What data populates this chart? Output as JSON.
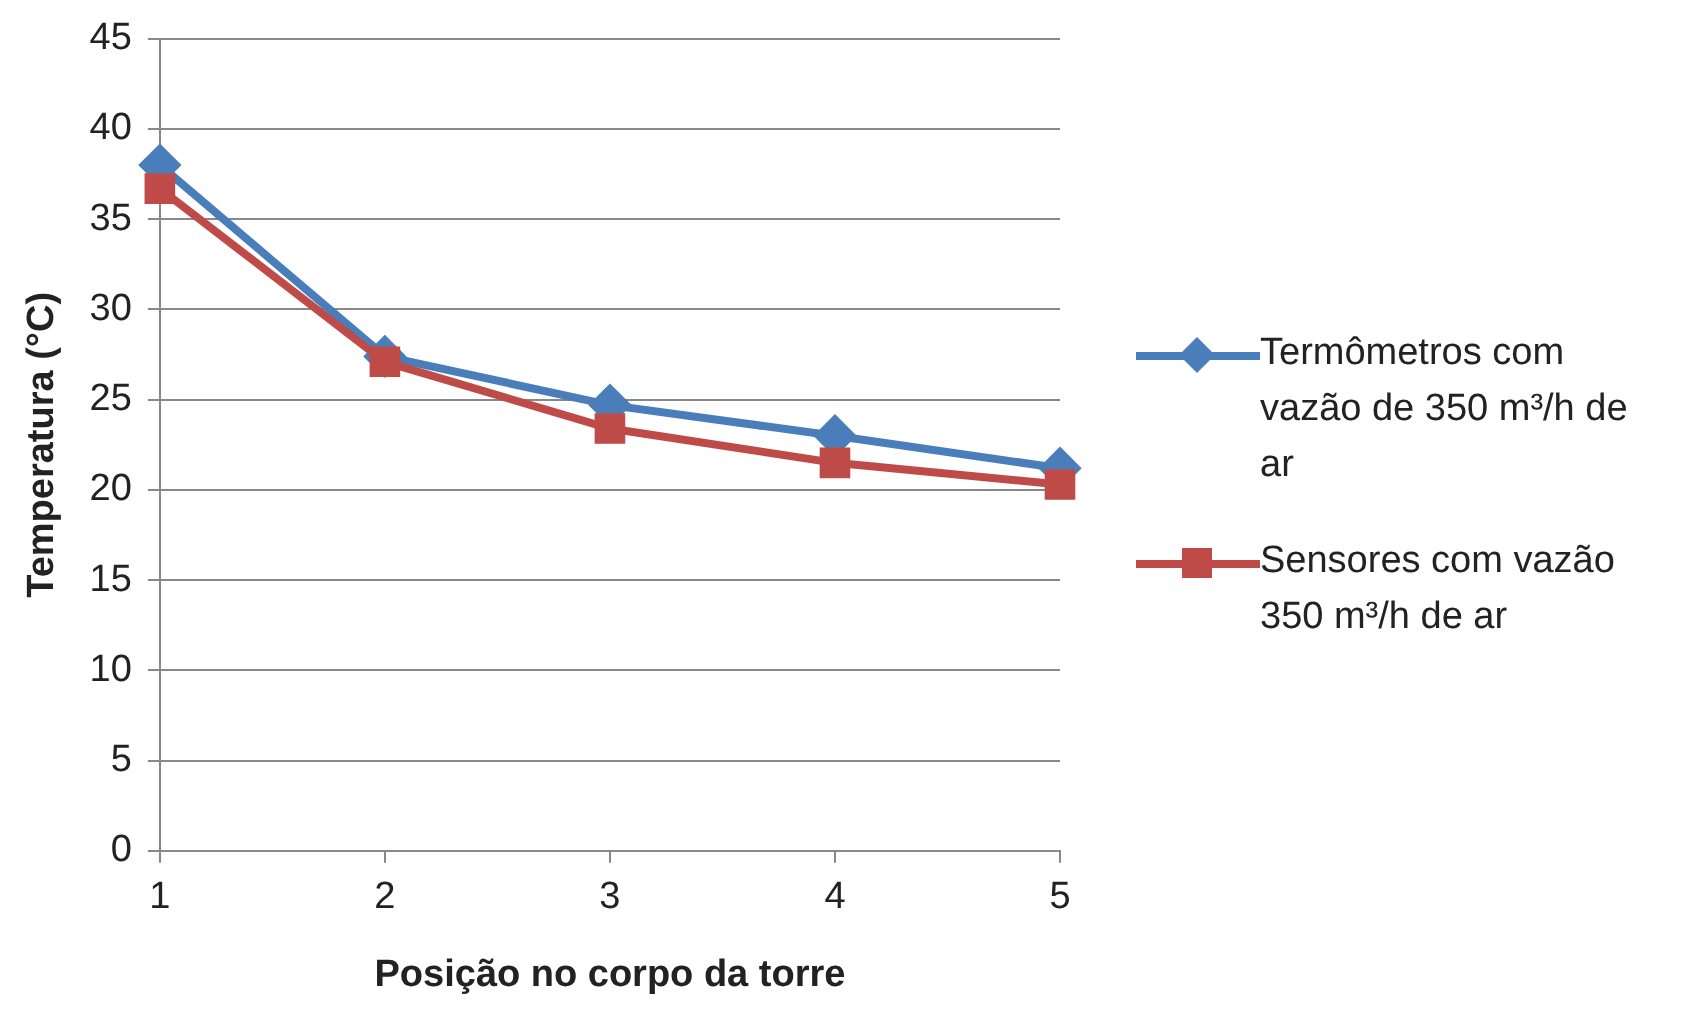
{
  "chart_data": {
    "type": "line",
    "xlabel": "Posição no corpo da torre",
    "ylabel": "Temperatura (°C)",
    "x": [
      1,
      2,
      3,
      4,
      5
    ],
    "xlim": [
      1,
      5
    ],
    "xticks": [
      1,
      2,
      3,
      4,
      5
    ],
    "ylim": [
      0,
      45
    ],
    "yticks": [
      0,
      5,
      10,
      15,
      20,
      25,
      30,
      35,
      40,
      45
    ],
    "grid": "y",
    "legend": "right",
    "series": [
      {
        "name": "Termômetros com vazão de 350 m³/h de ar",
        "color": "#4a7ebb",
        "marker": "diamond",
        "values": [
          38.0,
          27.4,
          24.7,
          23.0,
          21.2
        ]
      },
      {
        "name": "Sensores com vazão 350 m³/h de ar",
        "color": "#be4b48",
        "marker": "square",
        "values": [
          36.7,
          27.1,
          23.4,
          21.5,
          20.3
        ]
      }
    ]
  }
}
